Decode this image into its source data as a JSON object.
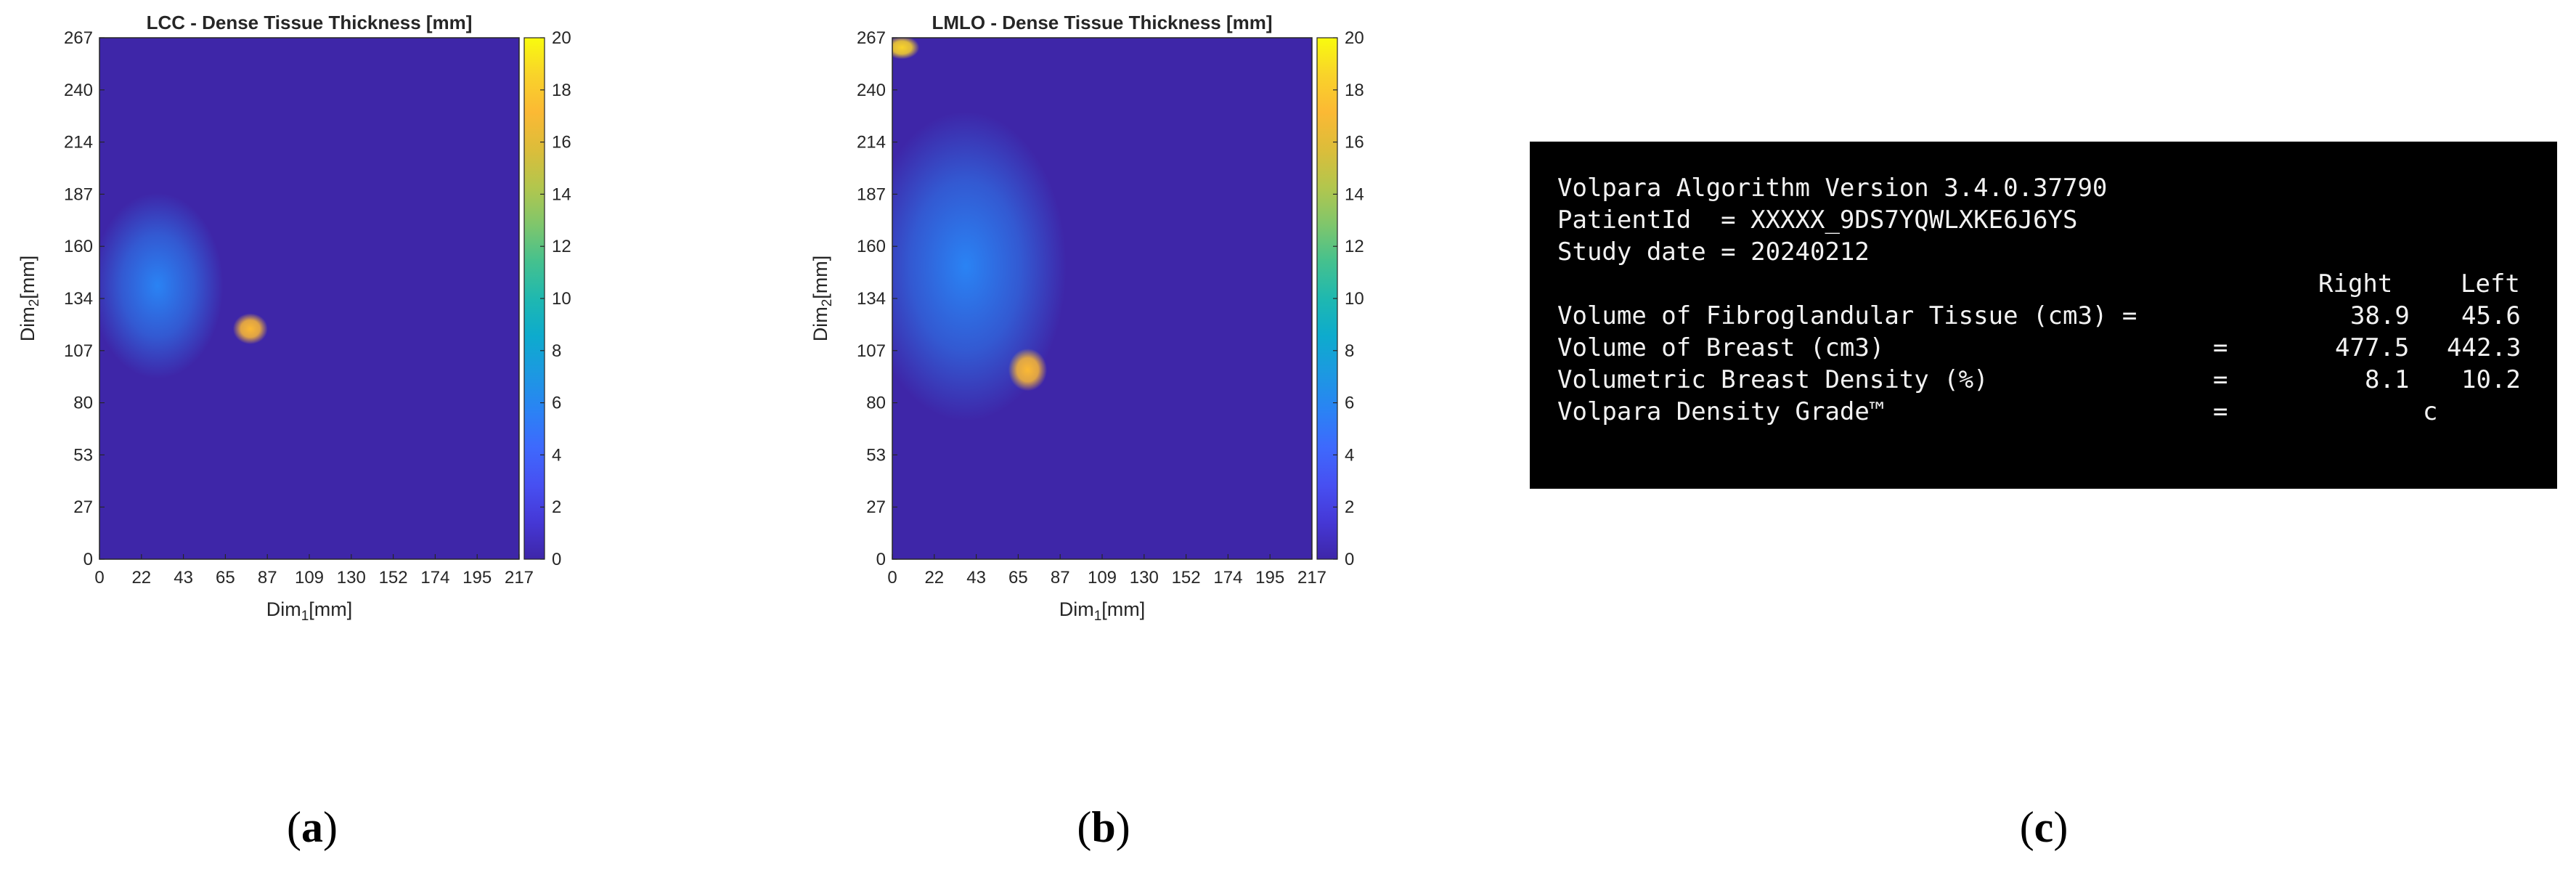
{
  "panels": {
    "a": {
      "title": "LCC - Dense Tissue Thickness [mm]",
      "caption_letter": "a"
    },
    "b": {
      "title": "LMLO - Dense Tissue Thickness [mm]",
      "caption_letter": "b"
    },
    "c": {
      "caption_letter": "c"
    }
  },
  "chart_data": [
    {
      "type": "heatmap",
      "title": "LCC - Dense Tissue Thickness [mm]",
      "xlabel": "Dim1[mm]",
      "ylabel": "Dim2[mm]",
      "xticks": [
        "0",
        "22",
        "43",
        "65",
        "87",
        "109",
        "130",
        "152",
        "174",
        "195",
        "217"
      ],
      "yticks": [
        "0",
        "27",
        "53",
        "80",
        "107",
        "134",
        "160",
        "187",
        "214",
        "240",
        "267"
      ],
      "xlim": [
        0,
        217
      ],
      "ylim": [
        0,
        267
      ],
      "colorbar": {
        "ticks": [
          "0",
          "2",
          "4",
          "6",
          "8",
          "10",
          "12",
          "14",
          "16",
          "18",
          "20"
        ],
        "range": [
          0,
          20
        ],
        "colormap": "parula"
      },
      "background_value": 0,
      "regions": [
        {
          "kind": "tissue",
          "x": 30,
          "y": 140,
          "rx": 34,
          "ry": 48,
          "value": 5
        },
        {
          "kind": "hotspot",
          "x": 78,
          "y": 118,
          "rx": 9,
          "ry": 8,
          "value": 17
        }
      ]
    },
    {
      "type": "heatmap",
      "title": "LMLO - Dense Tissue Thickness [mm]",
      "xlabel": "Dim1[mm]",
      "ylabel": "Dim2[mm]",
      "xticks": [
        "0",
        "22",
        "43",
        "65",
        "87",
        "109",
        "130",
        "152",
        "174",
        "195",
        "217"
      ],
      "yticks": [
        "0",
        "27",
        "53",
        "80",
        "107",
        "134",
        "160",
        "187",
        "214",
        "240",
        "267"
      ],
      "xlim": [
        0,
        217
      ],
      "ylim": [
        0,
        267
      ],
      "colorbar": {
        "ticks": [
          "0",
          "2",
          "4",
          "6",
          "8",
          "10",
          "12",
          "14",
          "16",
          "18",
          "20"
        ],
        "range": [
          0,
          20
        ],
        "colormap": "parula"
      },
      "background_value": 0,
      "regions": [
        {
          "kind": "tissue",
          "x": 38,
          "y": 150,
          "rx": 52,
          "ry": 80,
          "value": 6
        },
        {
          "kind": "hotspot",
          "x": 70,
          "y": 97,
          "rx": 10,
          "ry": 11,
          "value": 17
        },
        {
          "kind": "edge",
          "x": 5,
          "y": 262,
          "rx": 9,
          "ry": 6,
          "value": 19
        }
      ]
    }
  ],
  "report": {
    "line1": "Volpara Algorithm Version 3.4.0.37790",
    "line2": "PatientId  = XXXXX_9DS7YQWLXKE6J6YS",
    "line3": "Study date = 20240212",
    "col_right": "Right",
    "col_left": "Left",
    "rows": [
      {
        "label": "Volume of Fibroglandular Tissue (cm3) =",
        "right": "38.9",
        "left": "45.6"
      },
      {
        "label": "Volume of Breast (cm3)",
        "eq": "=",
        "right": "477.5",
        "left": "442.3"
      },
      {
        "label": "Volumetric Breast Density (%)",
        "eq": "=",
        "right": "8.1",
        "left": "10.2"
      },
      {
        "label": "Volpara Density Grade™",
        "eq": "=",
        "grade": "c"
      }
    ]
  },
  "colors": {
    "background": "#3e26a8",
    "terminal_bg": "#000000",
    "terminal_fg": "#f2f2f2"
  }
}
